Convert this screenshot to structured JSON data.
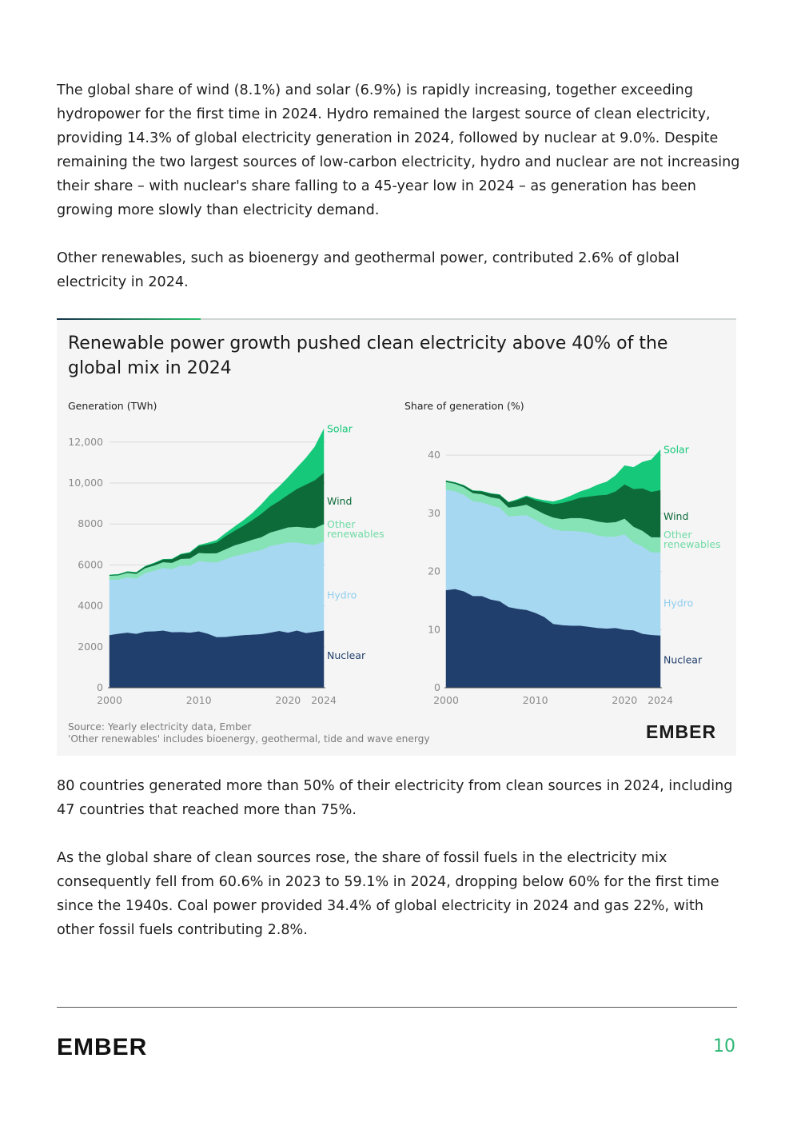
{
  "paragraphs": {
    "p1": "The global share of wind (8.1%) and solar (6.9%) is rapidly increasing, together exceeding hydropower for the first time in 2024. Hydro remained the largest source of clean electricity, providing 14.3% of global electricity generation in 2024, followed by nuclear at 9.0%. Despite remaining the two largest sources of low-carbon electricity, hydro and nuclear are not increasing their share – with nuclear's share falling to a 45-year low in 2024 – as generation has been growing more slowly than electricity demand.",
    "p2": "Other renewables, such as bioenergy and geothermal power, contributed 2.6% of global electricity in 2024.",
    "p3": "80 countries generated more than 50% of their electricity from clean sources in 2024, including 47 countries that reached more than 75%.",
    "p4": "As the global share of clean sources rose, the share of fossil fuels in the electricity mix consequently fell from 60.6% in 2023 to 59.1% in 2024, dropping below 60% for the first time since the 1940s. Coal power provided 34.4% of global electricity in 2024 and gas 22%, with other fossil fuels contributing 2.8%."
  },
  "figure": {
    "title": "Renewable power growth pushed clean electricity above 40% of the global mix in 2024",
    "source_line1": "Source: Yearly electricity data, Ember",
    "source_line2": "'Other renewables' includes bioenergy, geothermal, tide and wave energy",
    "logo_text": "EMBER"
  },
  "footer": {
    "logo_text": "EMBER",
    "page_number": "10"
  },
  "colors": {
    "nuclear": "#213f6d",
    "hydro": "#a7d8f1",
    "other_renewables": "#86e3b5",
    "wind": "#0d6b3a",
    "solar": "#16c87a",
    "brand_green": "#2bb673",
    "dark": "#1a1a1a"
  },
  "chart_data": [
    {
      "type": "area",
      "stacked": true,
      "title": "",
      "ylabel": "Generation (TWh)",
      "xlabel": "",
      "ylim": [
        0,
        12500
      ],
      "xlim": [
        2000,
        2024
      ],
      "yticks": [
        "0",
        "2000",
        "4000",
        "6000",
        "8000",
        "10,000",
        "12,000"
      ],
      "xticks": [
        "2000",
        "2010",
        "2020",
        "2024"
      ],
      "grid": true,
      "x": [
        2000,
        2001,
        2002,
        2003,
        2004,
        2005,
        2006,
        2007,
        2008,
        2009,
        2010,
        2011,
        2012,
        2013,
        2014,
        2015,
        2016,
        2017,
        2018,
        2019,
        2020,
        2021,
        2022,
        2023,
        2024
      ],
      "series": [
        {
          "name": "Nuclear",
          "color_key": "nuclear",
          "values": [
            2580,
            2650,
            2700,
            2640,
            2750,
            2760,
            2800,
            2720,
            2730,
            2700,
            2760,
            2650,
            2480,
            2490,
            2540,
            2580,
            2600,
            2630,
            2700,
            2780,
            2700,
            2800,
            2680,
            2740,
            2800
          ]
        },
        {
          "name": "Hydro",
          "color_key": "hydro",
          "values": [
            2700,
            2640,
            2700,
            2700,
            2850,
            2960,
            3060,
            3090,
            3250,
            3270,
            3440,
            3500,
            3650,
            3800,
            3900,
            3950,
            4050,
            4100,
            4230,
            4230,
            4400,
            4300,
            4350,
            4250,
            4350
          ]
        },
        {
          "name": "Other renewables",
          "color_key": "other_renewables",
          "values": [
            200,
            210,
            220,
            230,
            250,
            260,
            280,
            300,
            320,
            350,
            390,
            420,
            450,
            480,
            520,
            560,
            590,
            630,
            660,
            700,
            740,
            770,
            800,
            820,
            850
          ]
        },
        {
          "name": "Wind",
          "color_key": "wind",
          "values": [
            31,
            38,
            52,
            63,
            85,
            104,
            132,
            170,
            220,
            277,
            342,
            436,
            523,
            640,
            712,
            832,
            960,
            1140,
            1270,
            1420,
            1590,
            1850,
            2100,
            2330,
            2500
          ]
        },
        {
          "name": "Solar",
          "color_key": "solar",
          "values": [
            1,
            1,
            2,
            2,
            3,
            4,
            6,
            8,
            12,
            20,
            32,
            63,
            99,
            138,
            191,
            251,
            328,
            445,
            571,
            699,
            844,
            1030,
            1290,
            1630,
            2130
          ]
        }
      ]
    },
    {
      "type": "area",
      "stacked": true,
      "title": "",
      "ylabel": "Share of generation (%)",
      "xlabel": "",
      "ylim": [
        0,
        44
      ],
      "xlim": [
        2000,
        2024
      ],
      "yticks": [
        "0",
        "10",
        "20",
        "30",
        "40"
      ],
      "xticks": [
        "2000",
        "2010",
        "2020",
        "2024"
      ],
      "grid": true,
      "x": [
        2000,
        2001,
        2002,
        2003,
        2004,
        2005,
        2006,
        2007,
        2008,
        2009,
        2010,
        2011,
        2012,
        2013,
        2014,
        2015,
        2016,
        2017,
        2018,
        2019,
        2020,
        2021,
        2022,
        2023,
        2024
      ],
      "series": [
        {
          "name": "Nuclear",
          "color_key": "nuclear",
          "values": [
            16.8,
            17.0,
            16.6,
            15.8,
            15.8,
            15.2,
            14.9,
            13.9,
            13.6,
            13.4,
            12.9,
            12.2,
            11.0,
            10.8,
            10.7,
            10.7,
            10.5,
            10.3,
            10.2,
            10.3,
            10.0,
            9.9,
            9.3,
            9.1,
            9.0
          ]
        },
        {
          "name": "Hydro",
          "color_key": "hydro",
          "values": [
            17.3,
            16.8,
            16.6,
            16.3,
            16.1,
            16.2,
            16.1,
            15.6,
            16.0,
            16.3,
            16.0,
            15.8,
            16.3,
            16.2,
            16.3,
            16.2,
            16.2,
            15.9,
            15.8,
            15.7,
            16.4,
            15.1,
            15.0,
            14.2,
            14.3
          ]
        },
        {
          "name": "Other renewables",
          "color_key": "other_renewables",
          "values": [
            1.3,
            1.3,
            1.3,
            1.4,
            1.4,
            1.4,
            1.5,
            1.5,
            1.6,
            1.8,
            1.8,
            1.9,
            2.0,
            2.0,
            2.2,
            2.3,
            2.3,
            2.4,
            2.4,
            2.5,
            2.7,
            2.7,
            2.7,
            2.6,
            2.6
          ]
        },
        {
          "name": "Wind",
          "color_key": "wind",
          "values": [
            0.2,
            0.2,
            0.3,
            0.4,
            0.5,
            0.6,
            0.7,
            0.9,
            1.1,
            1.4,
            1.6,
            2.0,
            2.3,
            2.8,
            3.0,
            3.5,
            3.9,
            4.5,
            4.8,
            5.3,
            5.9,
            6.5,
            7.3,
            7.8,
            8.1
          ]
        },
        {
          "name": "Solar",
          "color_key": "solar",
          "values": [
            0,
            0,
            0,
            0,
            0,
            0,
            0,
            0,
            0.1,
            0.1,
            0.2,
            0.3,
            0.4,
            0.6,
            0.8,
            1.0,
            1.3,
            1.8,
            2.2,
            2.7,
            3.2,
            3.7,
            4.5,
            5.5,
            6.9
          ]
        }
      ]
    }
  ]
}
